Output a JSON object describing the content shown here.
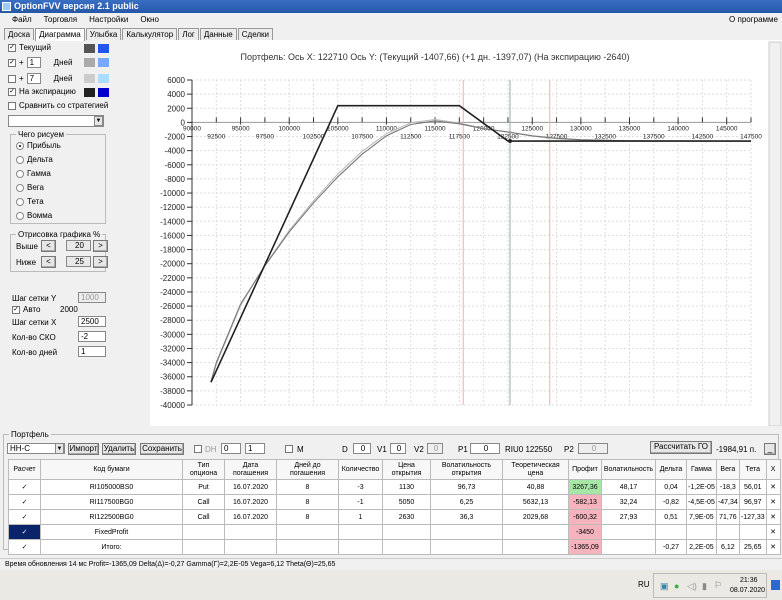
{
  "window": {
    "title": "OptionFVV версия 2.1 public"
  },
  "menu": {
    "items": [
      "Файл",
      "Торговля",
      "Настройки",
      "Окно"
    ],
    "right": "О программе"
  },
  "tabs": [
    {
      "label": "Доска"
    },
    {
      "label": "Диаграмма",
      "active": true
    },
    {
      "label": "Улыбка"
    },
    {
      "label": "Калькулятор"
    },
    {
      "label": "Лог"
    },
    {
      "label": "Данные"
    },
    {
      "label": "Сделки"
    }
  ],
  "left": {
    "series": [
      {
        "checked": true,
        "label": "Текущий",
        "colors": [
          "#555555",
          "#2255ee"
        ]
      },
      {
        "checked": true,
        "prefix": "+",
        "days": "1",
        "label": "Дней",
        "colors": [
          "#aaaaaa",
          "#77aaff"
        ]
      },
      {
        "checked": false,
        "prefix": "+",
        "days": "7",
        "label": "Дней",
        "colors": [
          "#cccccc",
          "#aaddff"
        ]
      },
      {
        "checked": true,
        "label": "На экспирацию",
        "colors": [
          "#222222",
          "#0000cc"
        ]
      }
    ],
    "compare": {
      "checked": false,
      "label": "Сравнить со стратегией"
    },
    "draw_group": {
      "title": "Чего рисуем",
      "options": [
        "Прибыль",
        "Дельта",
        "Гамма",
        "Вега",
        "Тета",
        "Вомма"
      ],
      "selected": 0
    },
    "range_group": {
      "title": "Отрисовка графика %",
      "above_label": "Выше",
      "above": "20",
      "below_label": "Ниже",
      "below": "25",
      "prev": "<",
      "next": ">"
    },
    "grid_y_label": "Шаг сетки Y",
    "grid_y": "1000",
    "auto": {
      "checked": true,
      "label": "Авто",
      "value": "2000"
    },
    "grid_x_label": "Шаг сетки X",
    "grid_x": "2500",
    "sko_label": "Кол-во СКО",
    "sko": "-2",
    "days_label": "Кол-во дней",
    "days": "1"
  },
  "chart_data": {
    "type": "line",
    "title": "Портфель: Ось X: 122710 Ось Y:  (Текущий -1407,66)  (+1 дн. -1397,07)  (На экспирацию -2640)",
    "xlim": [
      90000,
      147500
    ],
    "ylim": [
      -40000,
      6000
    ],
    "xticks_top": [
      90000,
      95000,
      100000,
      105000,
      110000,
      115000,
      120000,
      125000,
      130000,
      135000,
      140000,
      145000
    ],
    "xticks_bottom": [
      92500,
      97500,
      102500,
      107500,
      112500,
      117500,
      122500,
      127500,
      132500,
      137500,
      142500,
      147500
    ],
    "yticks": [
      6000,
      4000,
      2000,
      0,
      -2000,
      -4000,
      -6000,
      -8000,
      -10000,
      -12000,
      -14000,
      -16000,
      -18000,
      -20000,
      -22000,
      -24000,
      -26000,
      -28000,
      -30000,
      -32000,
      -34000,
      -36000,
      -38000,
      -40000
    ],
    "grid": true,
    "cursor_x": 122710,
    "red_lines": [
      117900,
      126800
    ],
    "series": [
      {
        "key": "expiration",
        "color": "#222222",
        "points": [
          [
            91950,
            -36790
          ],
          [
            105000,
            2360
          ],
          [
            117500,
            2360
          ],
          [
            122500,
            -2640
          ],
          [
            147500,
            -2640
          ]
        ]
      },
      {
        "key": "current",
        "color": "#777777",
        "points": [
          [
            91950,
            -36700
          ],
          [
            92500,
            -34000
          ],
          [
            95000,
            -25700
          ],
          [
            97500,
            -20300
          ],
          [
            100000,
            -15500
          ],
          [
            102500,
            -11400
          ],
          [
            105000,
            -7700
          ],
          [
            107500,
            -4500
          ],
          [
            110000,
            -1900
          ],
          [
            112500,
            -300
          ],
          [
            115000,
            200
          ],
          [
            117500,
            -200
          ],
          [
            120000,
            -900
          ],
          [
            122710,
            -1408
          ],
          [
            125000,
            -1900
          ],
          [
            127500,
            -2250
          ],
          [
            130000,
            -2450
          ],
          [
            135000,
            -2600
          ],
          [
            147500,
            -2640
          ]
        ]
      },
      {
        "key": "plus1day",
        "color": "#bbbbbb",
        "points": [
          [
            91950,
            -36750
          ],
          [
            92500,
            -34200
          ],
          [
            95000,
            -25900
          ],
          [
            97500,
            -20200
          ],
          [
            100000,
            -15300
          ],
          [
            102500,
            -11100
          ],
          [
            105000,
            -7300
          ],
          [
            107500,
            -4100
          ],
          [
            110000,
            -1600
          ],
          [
            112500,
            -50
          ],
          [
            115000,
            400
          ],
          [
            117500,
            -100
          ],
          [
            120000,
            -850
          ],
          [
            122710,
            -1397
          ],
          [
            125000,
            -1950
          ],
          [
            127500,
            -2300
          ],
          [
            130000,
            -2480
          ],
          [
            135000,
            -2610
          ],
          [
            147500,
            -2640
          ]
        ]
      }
    ]
  },
  "portfolio": {
    "title": "Портфель",
    "name": "НН-С",
    "import": "Импорт",
    "delete": "Удалить",
    "save": "Сохранить",
    "dh_label": "DH",
    "dh1": "0",
    "dh2": "1",
    "m_label": "M",
    "d_label": "D",
    "d": "0",
    "v1_label": "V1",
    "v1": "0",
    "v2_label": "V2",
    "v2": "0",
    "p1_label": "P1",
    "p1": "0",
    "instrument": "RIU0 122550",
    "p2_label": "P2",
    "p2": "0",
    "calc_go": "Рассчитать ГО",
    "go_value": "-1984,91 п.",
    "minimize": "_",
    "columns": [
      "Расчет",
      "Код бумаги",
      "Тип опциона",
      "Дата погашения",
      "Дней до погашения",
      "Количество",
      "Цена открытия",
      "Волатильность открытия",
      "Теоретическая цена",
      "Профит",
      "Волатильность",
      "Дельта",
      "Гамма",
      "Вега",
      "Тета",
      "X"
    ],
    "rows": [
      [
        "✓",
        "RI105000BS0",
        "Put",
        "16.07.2020",
        "8",
        "-3",
        "1130",
        "96,73",
        "40,88",
        "3267,36",
        "48,17",
        "0,04",
        "-1,2E-05",
        "-18,3",
        "56,01",
        "✕"
      ],
      [
        "✓",
        "RI117500BG0",
        "Call",
        "16.07.2020",
        "8",
        "-1",
        "5050",
        "6,25",
        "5632,13",
        "-582,13",
        "32,24",
        "-0,82",
        "-4,5E-05",
        "-47,34",
        "96,97",
        "✕"
      ],
      [
        "✓",
        "RI122500BG0",
        "Call",
        "16.07.2020",
        "8",
        "1",
        "2630",
        "36,3",
        "2029,68",
        "-600,32",
        "27,93",
        "0,51",
        "7,9E-05",
        "71,76",
        "-127,33",
        "✕"
      ],
      [
        "✓",
        "FixedProfit",
        "",
        "",
        "",
        "",
        "",
        "",
        "",
        "-3450",
        "",
        "",
        "",
        "",
        "",
        "✕"
      ],
      [
        "✓",
        "Итого:",
        "",
        "",
        "",
        "",
        "",
        "",
        "",
        "-1365,09",
        "",
        "-0,27",
        "2,2E-05",
        "6,12",
        "25,65",
        "✕"
      ]
    ]
  },
  "status": "Время обновления 14 мс  Profit=-1365,09 Delta(Δ)=-0,27 Gamma(Γ)=2,2E-05 Vega=6,12 Theta(Θ)=25,65",
  "taskbar": {
    "lang": "RU",
    "time": "21:36",
    "date": "08.07.2020"
  }
}
